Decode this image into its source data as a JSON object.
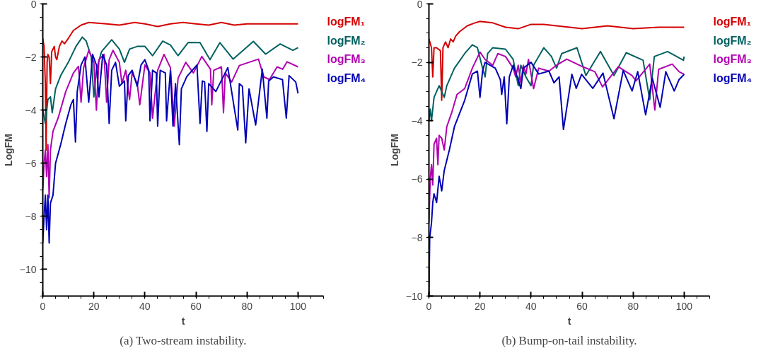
{
  "chart_data": [
    {
      "type": "line",
      "title": "(a) Two-stream instability.",
      "xlabel": "t",
      "ylabel": "LogFM",
      "xlim": [
        0,
        110
      ],
      "ylim": [
        -11,
        0
      ],
      "xticks": [
        0,
        20,
        40,
        60,
        80,
        100
      ],
      "yticks": [
        -10,
        -8,
        -6,
        -4,
        -2,
        0
      ],
      "grid": false,
      "line_style": "solid",
      "marker": "none",
      "series": [
        {
          "name": "logFM₁",
          "color": "#d40000",
          "x": [
            0,
            0.5,
            1,
            1.3,
            1.7,
            2,
            2.5,
            3,
            3.5,
            4.5,
            5,
            5.5,
            6.5,
            7.5,
            8.5,
            10,
            12,
            15,
            18,
            25,
            30,
            36,
            40,
            45,
            50,
            55,
            60,
            65,
            70,
            75,
            80,
            90,
            100
          ],
          "values": [
            -1.3,
            -1.6,
            -3,
            -5.5,
            -2.2,
            -1.9,
            -2,
            -3,
            -1.8,
            -1.6,
            -2,
            -2.1,
            -1.6,
            -1.4,
            -1.5,
            -1.3,
            -1.0,
            -0.8,
            -0.7,
            -0.75,
            -0.8,
            -0.7,
            -0.75,
            -0.85,
            -0.75,
            -0.7,
            -0.75,
            -0.8,
            -0.7,
            -0.8,
            -0.75,
            -0.75,
            -0.75
          ]
        },
        {
          "name": "logFM₂",
          "color": "#006060",
          "x": [
            0,
            1,
            2,
            3,
            3.7,
            5,
            7,
            10,
            13,
            15.5,
            17,
            19,
            20,
            21,
            23,
            27,
            30,
            32,
            34,
            37,
            40,
            43,
            47,
            50,
            53,
            57,
            61.6,
            65.5,
            69.4,
            74.6,
            82.5,
            87.3,
            93,
            98,
            100
          ],
          "values": [
            -4,
            -4.5,
            -3.6,
            -3.5,
            -4.1,
            -3.2,
            -2.7,
            -2.2,
            -1.6,
            -1.25,
            -1.4,
            -2,
            -3.5,
            -2.5,
            -1.8,
            -1.35,
            -1.7,
            -2.2,
            -1.7,
            -1.6,
            -1.6,
            -1.95,
            -1.4,
            -1.55,
            -1.95,
            -1.45,
            -1.46,
            -2.1,
            -1.46,
            -2.08,
            -1.41,
            -1.89,
            -1.51,
            -1.75,
            -1.65
          ]
        },
        {
          "name": "logFM₃",
          "color": "#b000b0",
          "x": [
            0,
            0.5,
            1,
            1.5,
            2,
            2.5,
            3,
            4,
            6,
            9,
            12,
            14,
            15,
            16,
            18,
            20,
            21,
            22,
            24,
            25,
            26,
            27.5,
            30,
            31,
            32.5,
            34,
            35,
            37,
            38,
            40,
            42,
            43,
            45,
            47.5,
            50,
            51.5,
            53,
            56,
            59,
            62.3,
            65.7,
            66.2,
            67,
            70,
            70.8,
            71.5,
            74,
            77,
            84.5,
            86.6,
            88.8,
            91.8,
            94,
            95.7,
            100
          ],
          "values": [
            -7,
            -6,
            -5.5,
            -6.5,
            -5.3,
            -7.3,
            -5.5,
            -4.8,
            -4.3,
            -3.3,
            -2.6,
            -2.35,
            -3.7,
            -2.4,
            -1.75,
            -2.2,
            -4,
            -2.1,
            -1.9,
            -3.7,
            -2.1,
            -1.75,
            -2.2,
            -3,
            -2.5,
            -3.6,
            -2.6,
            -3,
            -3.8,
            -2.3,
            -2.6,
            -4.3,
            -2.5,
            -1.9,
            -2.4,
            -4.6,
            -2.8,
            -2.2,
            -2.6,
            -1.98,
            -2.46,
            -3.8,
            -2.5,
            -2.37,
            -4.1,
            -2.6,
            -2.94,
            -2.32,
            -2.08,
            -2.75,
            -2.85,
            -2.37,
            -2.46,
            -2.18,
            -2.37
          ]
        },
        {
          "name": "logFM₄",
          "color": "#0000b4",
          "x": [
            0,
            0.5,
            1,
            1.5,
            2,
            2.5,
            3,
            4,
            5,
            7,
            9,
            11,
            12,
            12.8,
            13.5,
            15,
            16.5,
            18,
            19.5,
            21,
            22,
            23.5,
            25,
            26,
            27,
            28.5,
            30,
            32,
            32.5,
            33.5,
            35,
            37,
            38.5,
            40,
            41.5,
            42,
            43,
            44.5,
            45,
            46,
            48,
            48.5,
            50,
            51,
            52,
            53.5,
            54.3,
            56.4,
            60.4,
            61.6,
            62.5,
            63.4,
            64.3,
            65,
            67.8,
            72.5,
            76.4,
            77,
            78.2,
            79.5,
            80.8,
            83.4,
            86,
            87.8,
            88.5,
            90.4,
            93.9,
            95.4,
            96.5,
            99.1,
            100
          ],
          "values": [
            -9,
            -8,
            -7.2,
            -8.5,
            -7.2,
            -9,
            -7.5,
            -7.2,
            -6,
            -5.3,
            -4.5,
            -3.8,
            -3.6,
            -5.2,
            -3.3,
            -2.3,
            -2.0,
            -3.7,
            -1.9,
            -2.3,
            -3.5,
            -1.9,
            -2.3,
            -4.5,
            -2.5,
            -2.2,
            -3.1,
            -2.9,
            -4.4,
            -2.7,
            -2.5,
            -3.1,
            -2.3,
            -2.1,
            -2.5,
            -4.4,
            -2.5,
            -2.6,
            -4.6,
            -2.5,
            -2.6,
            -4.4,
            -2.5,
            -4.6,
            -3.0,
            -5.3,
            -3.2,
            -2.74,
            -2.3,
            -4.5,
            -2.9,
            -2.94,
            -4.8,
            -3.0,
            -3.3,
            -2.4,
            -4.75,
            -3.0,
            -3.1,
            -5.23,
            -3.2,
            -4.56,
            -2.46,
            -4.3,
            -2.9,
            -2.75,
            -2.85,
            -4.3,
            -2.7,
            -2.94,
            -3.37
          ]
        }
      ]
    },
    {
      "type": "line",
      "title": "(b) Bump-on-tail instability.",
      "xlabel": "t",
      "ylabel": "LogFM",
      "xlim": [
        0,
        110
      ],
      "ylim": [
        -10,
        0
      ],
      "xticks": [
        0,
        20,
        40,
        60,
        80,
        100
      ],
      "yticks": [
        -10,
        -8,
        -6,
        -4,
        -2,
        0
      ],
      "grid": false,
      "line_style": "solid",
      "marker": "none",
      "series": [
        {
          "name": "logFM₁",
          "color": "#d40000",
          "x": [
            0,
            1,
            1.5,
            2,
            3,
            4.5,
            5,
            5.5,
            6.5,
            7.5,
            8.5,
            9.5,
            10.5,
            12,
            15,
            18,
            20,
            25,
            30,
            35,
            40,
            45,
            50,
            55,
            60,
            70,
            80,
            90,
            100
          ],
          "values": [
            -1.2,
            -1.5,
            -2.5,
            -1.5,
            -1.5,
            -1.6,
            -3.3,
            -1.5,
            -1.3,
            -1.5,
            -1.2,
            -1.3,
            -1.1,
            -0.95,
            -0.75,
            -0.65,
            -0.6,
            -0.65,
            -0.8,
            -0.85,
            -0.7,
            -0.7,
            -0.75,
            -0.8,
            -0.85,
            -0.75,
            -0.85,
            -0.8,
            -0.8
          ]
        },
        {
          "name": "logFM₂",
          "color": "#006060",
          "x": [
            0,
            0.5,
            1,
            2,
            3,
            4,
            5,
            6,
            7,
            10,
            14,
            17,
            19,
            21,
            22,
            23,
            25,
            30,
            33,
            35,
            36,
            38,
            40,
            41,
            45,
            48,
            50,
            52,
            58,
            61.5,
            67.2,
            72.5,
            77.3,
            83.9,
            86.5,
            88.3,
            93.5,
            99.7,
            100
          ],
          "values": [
            -4,
            -3.6,
            -4,
            -3.2,
            -3,
            -2.8,
            -3,
            -3.2,
            -2.8,
            -2.2,
            -1.7,
            -1.4,
            -1.5,
            -2.2,
            -2.5,
            -1.7,
            -1.5,
            -1.55,
            -1.9,
            -2.8,
            -2.1,
            -2.5,
            -2.8,
            -2.1,
            -1.5,
            -1.8,
            -2.2,
            -1.7,
            -1.5,
            -2.45,
            -1.63,
            -2.45,
            -1.67,
            -1.93,
            -3.28,
            -1.8,
            -1.63,
            -1.93,
            -1.8
          ]
        },
        {
          "name": "logFM₃",
          "color": "#b000b0",
          "x": [
            0,
            0.5,
            1,
            1.5,
            2,
            3,
            3.5,
            4,
            5,
            6,
            7,
            9,
            11,
            14,
            17,
            20,
            22,
            25,
            27,
            30,
            33,
            34,
            35,
            36,
            37,
            38,
            39,
            41,
            43,
            47,
            50,
            54,
            60.2,
            65,
            68,
            74.2,
            79.5,
            81.2,
            86.5,
            88.5,
            90,
            95.3,
            98,
            100
          ],
          "values": [
            -7.5,
            -6,
            -5.5,
            -6.2,
            -4.8,
            -4.6,
            -5.5,
            -4.5,
            -4.6,
            -5,
            -4.2,
            -3.7,
            -3.1,
            -2.9,
            -2.2,
            -1.65,
            -1.9,
            -2.1,
            -1.7,
            -1.8,
            -2.2,
            -2.5,
            -2.1,
            -2.7,
            -2.1,
            -2.4,
            -1.9,
            -2.9,
            -2.2,
            -2.3,
            -2.1,
            -1.89,
            -2.15,
            -2.32,
            -2.84,
            -2.15,
            -2.45,
            -2.63,
            -2.06,
            -3.63,
            -2.24,
            -2.06,
            -2.32,
            -2.41
          ]
        },
        {
          "name": "logFM₄",
          "color": "#0000b4",
          "x": [
            0,
            0.3,
            1,
            1.5,
            2,
            3,
            4,
            5,
            6,
            8,
            10,
            14,
            17,
            19,
            20,
            21,
            22,
            26,
            28,
            28.5,
            29.5,
            30.5,
            31.5,
            33,
            35,
            36,
            37,
            40,
            43,
            47,
            49,
            51,
            52.7,
            56,
            57.7,
            59.8,
            64.2,
            68.2,
            72.5,
            76.1,
            79.6,
            81.8,
            84.9,
            87.5,
            90.6,
            92.8,
            96.1,
            98,
            100
          ],
          "values": [
            -10,
            -8,
            -7.5,
            -6.8,
            -6.5,
            -6.8,
            -5.9,
            -6.4,
            -5.7,
            -5,
            -4.2,
            -3.3,
            -2.4,
            -2.3,
            -3.2,
            -2.3,
            -2.0,
            -2.2,
            -2.6,
            -3.1,
            -2.5,
            -4.1,
            -2.5,
            -2.1,
            -2.6,
            -2.9,
            -2.2,
            -2.0,
            -2.4,
            -2.3,
            -2.7,
            -2.5,
            -4.3,
            -2.41,
            -2.89,
            -2.41,
            -2.89,
            -2.37,
            -3.93,
            -2.28,
            -2.98,
            -2.32,
            -3.8,
            -2.54,
            -3.54,
            -2.32,
            -2.98,
            -2.59,
            -2.41
          ]
        }
      ]
    }
  ]
}
